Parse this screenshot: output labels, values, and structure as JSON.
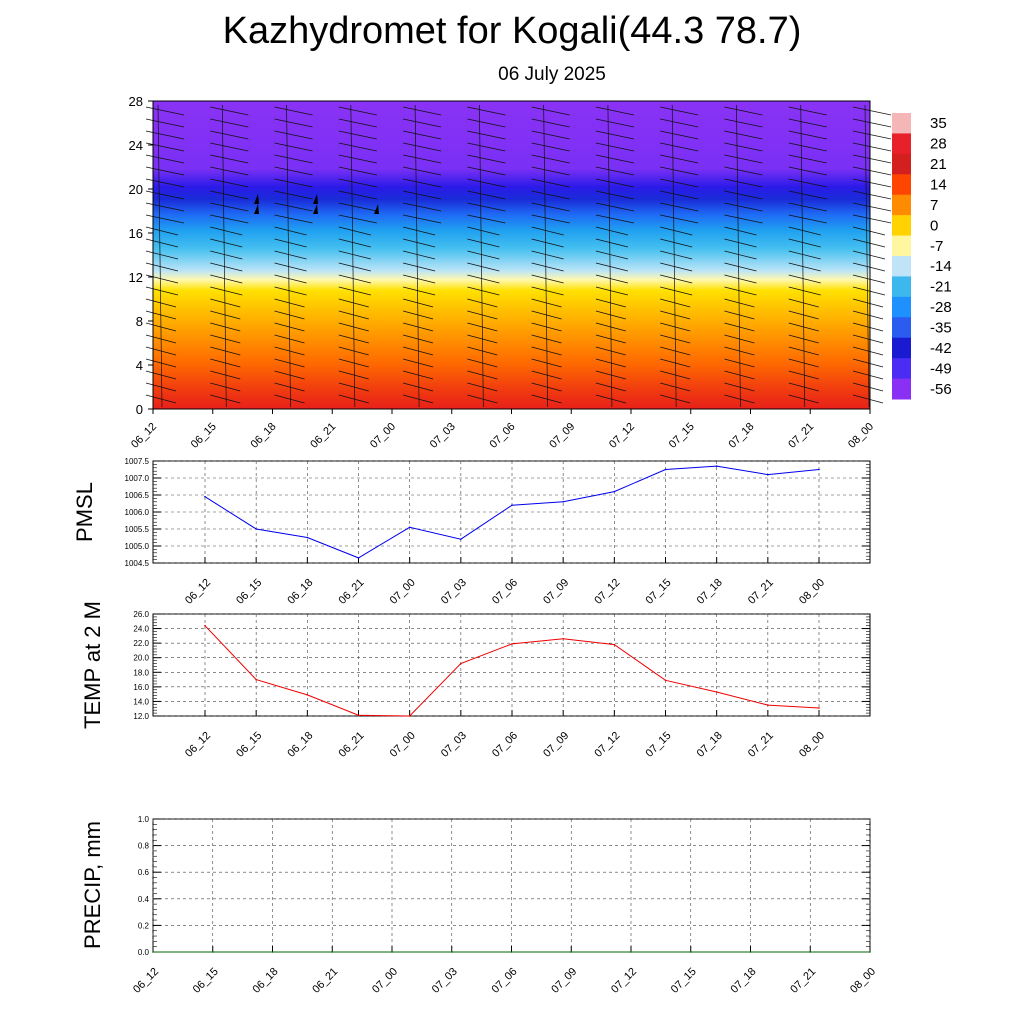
{
  "header": {
    "title": "Kazhydromet for Kogali(44.3 78.7)",
    "subtitle": "06 July 2025"
  },
  "chart_data": [
    {
      "type": "heatmap",
      "name": "cross-section",
      "x_ticks": [
        "06_12",
        "06_15",
        "06_18",
        "06_21",
        "07_00",
        "07_03",
        "07_06",
        "07_09",
        "07_12",
        "07_15",
        "07_18",
        "07_21",
        "08_00"
      ],
      "y_ticks": [
        "0",
        "4",
        "8",
        "12",
        "16",
        "20",
        "24",
        "28"
      ],
      "ylim": [
        0,
        28
      ],
      "colorbar_labels": [
        "35",
        "28",
        "21",
        "14",
        "7",
        "0",
        "-7",
        "-14",
        "-21",
        "-28",
        "-35",
        "-42",
        "-49",
        "-56"
      ],
      "colorbar_colors": [
        "#f4b6b6",
        "#e8202a",
        "#d41f1f",
        "#ff4500",
        "#ff8c00",
        "#ffd200",
        "#fff6a0",
        "#bfe3f7",
        "#3cb8ee",
        "#1e90ff",
        "#2a5cf0",
        "#1a1ad0",
        "#4a2cf5",
        "#8a30f5"
      ],
      "wind_barbs": "yes"
    },
    {
      "type": "line",
      "name": "pmsl",
      "ylabel": "PMSL",
      "categories": [
        "06_12",
        "06_15",
        "06_18",
        "06_21",
        "07_00",
        "07_03",
        "07_06",
        "07_09",
        "07_12",
        "07_15",
        "07_18",
        "07_21",
        "08_00"
      ],
      "values": [
        1006.45,
        1005.5,
        1005.25,
        1004.65,
        1005.55,
        1005.2,
        1006.2,
        1006.3,
        1006.6,
        1007.25,
        1007.35,
        1007.1,
        1007.25
      ],
      "ylim": [
        1004.5,
        1007.5
      ],
      "yticks": [
        "1004.5",
        "1005.0",
        "1005.5",
        "1006.0",
        "1006.5",
        "1007.0",
        "1007.5"
      ],
      "color": "#0000ee",
      "grid": true
    },
    {
      "type": "line",
      "name": "temp",
      "ylabel": "TEMP at 2 M",
      "categories": [
        "06_12",
        "06_15",
        "06_18",
        "06_21",
        "07_00",
        "07_03",
        "07_06",
        "07_09",
        "07_12",
        "07_15",
        "07_18",
        "07_21",
        "08_00"
      ],
      "values": [
        24.4,
        17.0,
        14.9,
        12.1,
        12.0,
        19.2,
        21.9,
        22.6,
        21.8,
        16.9,
        15.3,
        13.5,
        13.1
      ],
      "ylim": [
        12,
        26
      ],
      "yticks": [
        "12.0",
        "14.0",
        "16.0",
        "18.0",
        "20.0",
        "22.0",
        "24.0",
        "26.0"
      ],
      "color": "#ee0000",
      "grid": true
    },
    {
      "type": "line",
      "name": "precip",
      "ylabel": "PRECIP, mm",
      "categories": [
        "06_12",
        "06_15",
        "06_18",
        "06_21",
        "07_00",
        "07_03",
        "07_06",
        "07_09",
        "07_12",
        "07_15",
        "07_18",
        "07_21",
        "08_00"
      ],
      "values": [
        0,
        0,
        0,
        0,
        0,
        0,
        0,
        0,
        0,
        0,
        0,
        0,
        0
      ],
      "ylim": [
        0,
        1
      ],
      "yticks": [
        "0.0",
        "0.2",
        "0.4",
        "0.6",
        "0.8",
        "1.0"
      ],
      "color": "#006400",
      "grid": true
    }
  ]
}
